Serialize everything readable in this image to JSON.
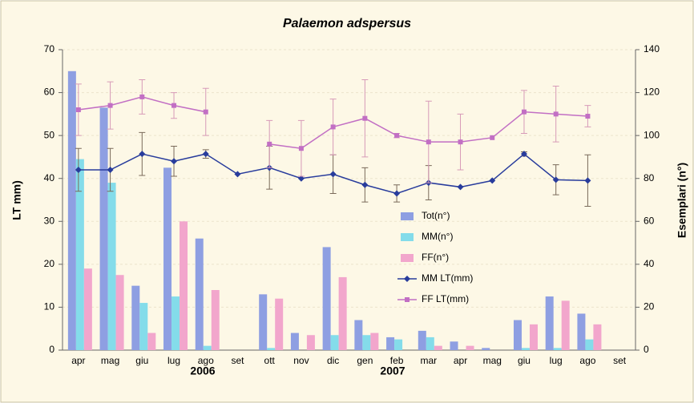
{
  "chart_data": {
    "type": "bar-line",
    "title": "Palaemon adspersus",
    "y_label": "LT mm)",
    "y2_label": "Esemplari (n°)",
    "categories": [
      "apr",
      "mag",
      "giu",
      "lug",
      "ago",
      "set",
      "ott",
      "nov",
      "dic",
      "gen",
      "feb",
      "mar",
      "apr",
      "mag",
      "giu",
      "lug",
      "ago",
      "set"
    ],
    "year_labels": [
      "2006",
      "2007"
    ],
    "ylim": [
      0,
      70
    ],
    "yticks": [
      0,
      10,
      20,
      30,
      40,
      50,
      60,
      70
    ],
    "y2lim": [
      0,
      140
    ],
    "y2ticks": [
      0,
      20,
      40,
      60,
      80,
      100,
      120,
      140
    ],
    "grid": true,
    "legend_position": "right",
    "series": [
      {
        "name": "Tot(n°)",
        "kind": "bar",
        "axis": "y2",
        "color": "#8e9fe2",
        "values": [
          130,
          113,
          30,
          85,
          52,
          null,
          26,
          8,
          48,
          14,
          6,
          9,
          4,
          1,
          14,
          25,
          17,
          null
        ]
      },
      {
        "name": "MM(n°)",
        "kind": "bar",
        "axis": "y2",
        "color": "#84dcea",
        "values": [
          89,
          78,
          22,
          25,
          2,
          null,
          1,
          null,
          7,
          7,
          5,
          6,
          null,
          null,
          1,
          1,
          5,
          null
        ]
      },
      {
        "name": "FF(n°)",
        "kind": "bar",
        "axis": "y2",
        "color": "#f2a6cc",
        "values": [
          38,
          35,
          8,
          60,
          28,
          null,
          24,
          7,
          34,
          8,
          null,
          2,
          2,
          null,
          12,
          23,
          12,
          null
        ]
      },
      {
        "name": "MM LT(mm)",
        "kind": "line",
        "axis": "y",
        "color": "#283c9c",
        "error_color": "#7a6a5a",
        "marker": "diamond",
        "values": [
          42,
          42,
          45.7,
          44,
          45.7,
          41,
          42.5,
          40,
          41,
          38.5,
          36.5,
          39,
          38,
          39.5,
          45.7,
          39.7,
          39.5,
          null
        ],
        "errors": [
          5,
          5,
          5,
          3.5,
          1,
          null,
          5,
          null,
          4.5,
          4,
          2,
          4,
          null,
          null,
          0.5,
          3.5,
          6,
          null
        ]
      },
      {
        "name": "FF LT(mm)",
        "kind": "line",
        "axis": "y",
        "color": "#c26fc4",
        "error_color": "#d79ab8",
        "marker": "square",
        "values": [
          56,
          57,
          59,
          57,
          55.5,
          null,
          48,
          47,
          52,
          54,
          50,
          48.5,
          48.5,
          49.5,
          55.5,
          55,
          54.5,
          null
        ],
        "errors": [
          6,
          5.5,
          4,
          3,
          5.5,
          null,
          5.5,
          6.5,
          6.5,
          9,
          0.5,
          9.5,
          6.5,
          null,
          5,
          6.5,
          2.5,
          null
        ]
      }
    ]
  }
}
